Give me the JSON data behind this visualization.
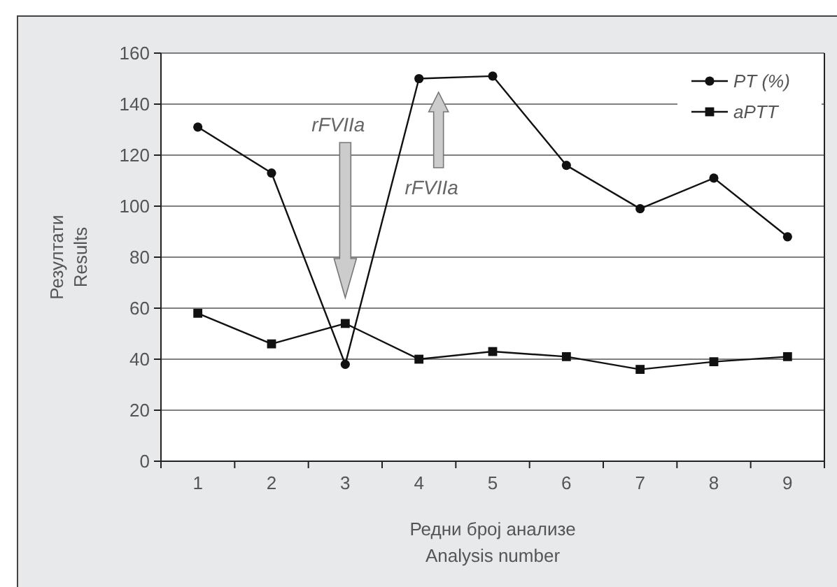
{
  "chart_data": {
    "type": "line",
    "xlabel": "Редни број анализе\nAnalysis number",
    "ylabel": "Резултати\nResults",
    "categories": [
      "1",
      "2",
      "3",
      "4",
      "5",
      "6",
      "7",
      "8",
      "9"
    ],
    "series": [
      {
        "name": "PT (%)",
        "color": "#111111",
        "marker": "circle",
        "values": [
          131,
          113,
          38,
          150,
          151,
          116,
          99,
          111,
          88
        ]
      },
      {
        "name": "aPTT",
        "color": "#111111",
        "marker": "square",
        "values": [
          58,
          46,
          54,
          40,
          43,
          41,
          36,
          39,
          41
        ]
      }
    ],
    "ylim": [
      0,
      160
    ],
    "yticks": [
      0,
      20,
      40,
      60,
      80,
      100,
      120,
      140,
      160
    ],
    "grid": "y",
    "legend": "top right",
    "annotations": [
      "rFVIIa",
      "rFVIIa"
    ]
  }
}
